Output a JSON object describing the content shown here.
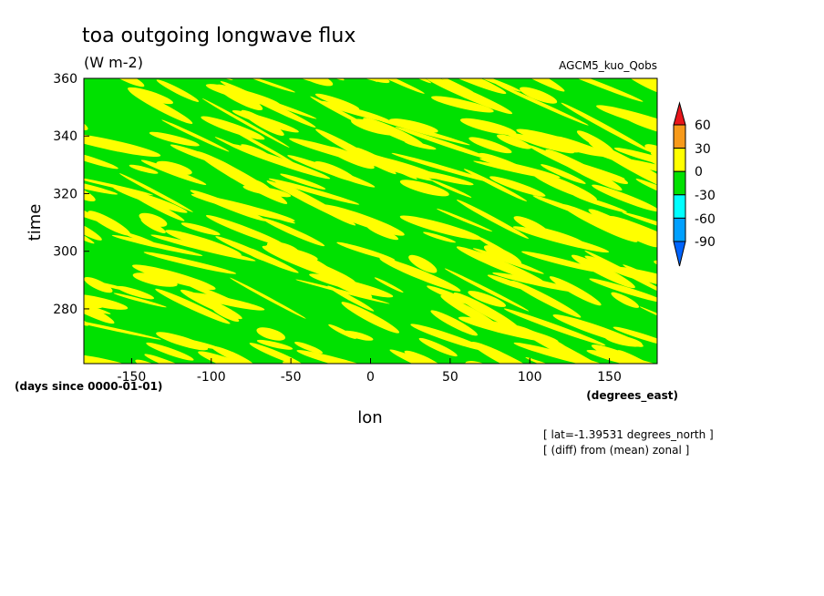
{
  "chart_data": {
    "type": "heatmap",
    "title": "toa outgoing longwave flux",
    "units": "(W m-2)",
    "dataset": "AGCM5_kuo_Qobs",
    "xlabel": "lon",
    "ylabel": "time",
    "x_units": "(degrees_east)",
    "y_units": "(days since 0000-01-01)",
    "xlim": [
      -180,
      180
    ],
    "ylim": [
      261,
      360
    ],
    "x_ticks": [
      "-150",
      "-100",
      "-50",
      "0",
      "50",
      "100",
      "150"
    ],
    "y_ticks": [
      "280",
      "300",
      "320",
      "340",
      "360"
    ],
    "color_scale": {
      "levels": [
        "60",
        "30",
        "0",
        "-30",
        "-60",
        "-90"
      ],
      "bins": [
        {
          "range": "> 60",
          "color": "#e8161b"
        },
        {
          "range": "30 to 60",
          "color": "#f79a1a"
        },
        {
          "range": "0 to 30",
          "color": "#ffff00"
        },
        {
          "range": "-30 to 0",
          "color": "#00e100"
        },
        {
          "range": "-60 to -30",
          "color": "#00ffff"
        },
        {
          "range": "-90 to -60",
          "color": "#00a0ff"
        },
        {
          "range": "< -90",
          "color": "#0064ff"
        }
      ]
    },
    "dominant_bins": [
      "0 to 30",
      "-30 to 0"
    ],
    "pattern": "diagonal bands slanting down to the right (westward propagation)",
    "annotations": [
      "[ lat=-1.39531 degrees_north ]",
      "[ (diff) from (mean) zonal ]"
    ]
  }
}
